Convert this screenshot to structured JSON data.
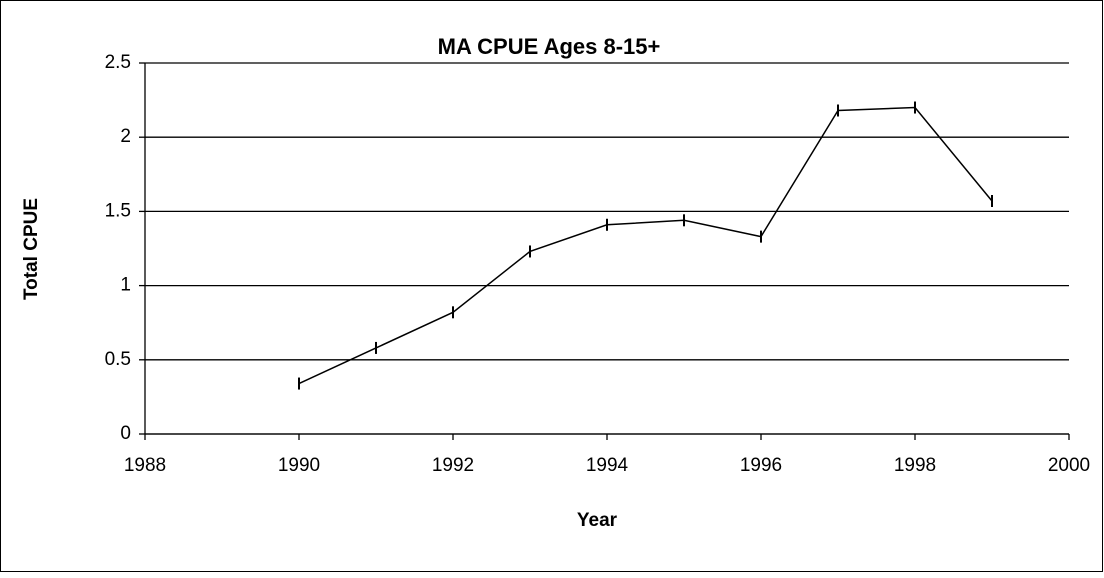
{
  "chart_data": {
    "type": "line",
    "title": "MA CPUE Ages 8-15+",
    "x_label": "Year",
    "y_label": "Total CPUE",
    "x": [
      1990,
      1991,
      1992,
      1993,
      1994,
      1995,
      1996,
      1997,
      1998,
      1999
    ],
    "series": [
      {
        "color": "#000000",
        "values": [
          0.34,
          0.58,
          0.82,
          1.23,
          1.41,
          1.44,
          1.33,
          2.18,
          2.2,
          1.57
        ]
      }
    ],
    "xlim": [
      1988,
      2000
    ],
    "xticks": [
      1988,
      1990,
      1992,
      1994,
      1996,
      1998,
      2000
    ],
    "ylim": [
      0,
      2.5
    ],
    "yticks": [
      0,
      0.5,
      1,
      1.5,
      2,
      2.5
    ],
    "grid": true
  }
}
